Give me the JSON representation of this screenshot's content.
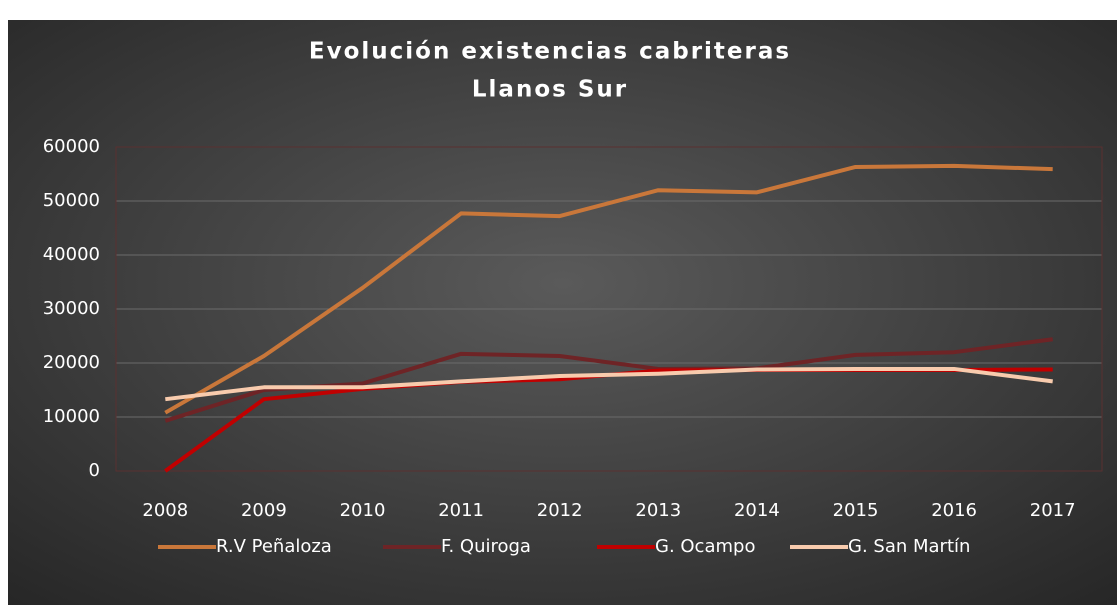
{
  "chart_data": {
    "type": "line",
    "title": [
      "Evolución existencias cabriteras",
      "Llanos Sur"
    ],
    "categories": [
      "2008",
      "2009",
      "2010",
      "2011",
      "2012",
      "2013",
      "2014",
      "2015",
      "2016",
      "2017"
    ],
    "series": [
      {
        "name": "R.V Peñaloza",
        "color": "#c9773a",
        "values": [
          10800,
          21300,
          33900,
          47700,
          47200,
          52000,
          51600,
          56300,
          56500,
          55900
        ]
      },
      {
        "name": "F. Quiroga",
        "color": "#6e2426",
        "values": [
          9300,
          15000,
          16200,
          21700,
          21300,
          18900,
          19000,
          21500,
          22000,
          24400
        ]
      },
      {
        "name": "G. Ocampo",
        "color": "#c00000",
        "values": [
          0,
          13300,
          15200,
          16500,
          17000,
          18600,
          18700,
          18700,
          18700,
          18800
        ]
      },
      {
        "name": "G. San Martín",
        "color": "#f8cbad",
        "values": [
          13300,
          15500,
          15500,
          16600,
          17600,
          18000,
          18800,
          18900,
          18900,
          16600
        ]
      }
    ],
    "ylim": [
      0,
      60000
    ],
    "yticks": [
      0,
      10000,
      20000,
      30000,
      40000,
      50000,
      60000
    ],
    "grid": true,
    "legend": "bottom"
  }
}
